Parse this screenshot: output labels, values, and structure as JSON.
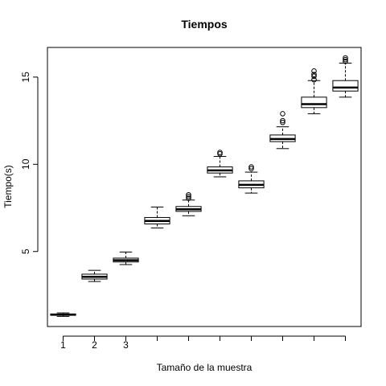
{
  "chart_data": {
    "type": "boxplot",
    "title": "Tiempos",
    "xlabel": "Tamaño de la muestra",
    "ylabel": "Tiempo(s)",
    "xlim": [
      0.5,
      10.5
    ],
    "ylim": [
      0.7,
      16.7
    ],
    "x_ticks": [
      1,
      2,
      3,
      4,
      5,
      6,
      7,
      8,
      9,
      10
    ],
    "x_tick_labels": [
      "1",
      "2",
      "3",
      "",
      "",
      "",
      "",
      "",
      "",
      ""
    ],
    "y_ticks": [
      5,
      10,
      15
    ],
    "y_tick_labels": [
      "5",
      "10",
      "15"
    ],
    "grid": false,
    "boxes": [
      {
        "x": 1,
        "whisker_low": 1.28,
        "q1": 1.34,
        "median": 1.38,
        "q3": 1.42,
        "whisker_high": 1.48,
        "outliers": []
      },
      {
        "x": 2,
        "whisker_low": 3.28,
        "q1": 3.42,
        "median": 3.55,
        "q3": 3.7,
        "whisker_high": 3.92,
        "outliers": []
      },
      {
        "x": 3,
        "whisker_low": 4.25,
        "q1": 4.4,
        "median": 4.5,
        "q3": 4.62,
        "whisker_high": 4.97,
        "outliers": []
      },
      {
        "x": 4,
        "whisker_low": 6.35,
        "q1": 6.58,
        "median": 6.75,
        "q3": 6.95,
        "whisker_high": 7.55,
        "outliers": []
      },
      {
        "x": 5,
        "whisker_low": 7.05,
        "q1": 7.3,
        "median": 7.42,
        "q3": 7.58,
        "whisker_high": 7.95,
        "outliers": [
          8.05,
          8.15,
          8.25
        ]
      },
      {
        "x": 6,
        "whisker_low": 9.28,
        "q1": 9.5,
        "median": 9.65,
        "q3": 9.85,
        "whisker_high": 10.45,
        "outliers": [
          10.6,
          10.68
        ]
      },
      {
        "x": 7,
        "whisker_low": 8.35,
        "q1": 8.65,
        "median": 8.82,
        "q3": 9.05,
        "whisker_high": 9.55,
        "outliers": [
          9.75,
          9.85
        ]
      },
      {
        "x": 8,
        "whisker_low": 10.9,
        "q1": 11.3,
        "median": 11.45,
        "q3": 11.68,
        "whisker_high": 12.15,
        "outliers": [
          12.4,
          12.5,
          12.9
        ]
      },
      {
        "x": 9,
        "whisker_low": 12.9,
        "q1": 13.25,
        "median": 13.45,
        "q3": 13.85,
        "whisker_high": 14.8,
        "outliers": [
          14.85,
          15.05,
          15.15,
          15.35
        ]
      },
      {
        "x": 10,
        "whisker_low": 13.85,
        "q1": 14.2,
        "median": 14.4,
        "q3": 14.8,
        "whisker_high": 15.8,
        "outliers": [
          15.9,
          16.0,
          16.1
        ]
      }
    ]
  }
}
